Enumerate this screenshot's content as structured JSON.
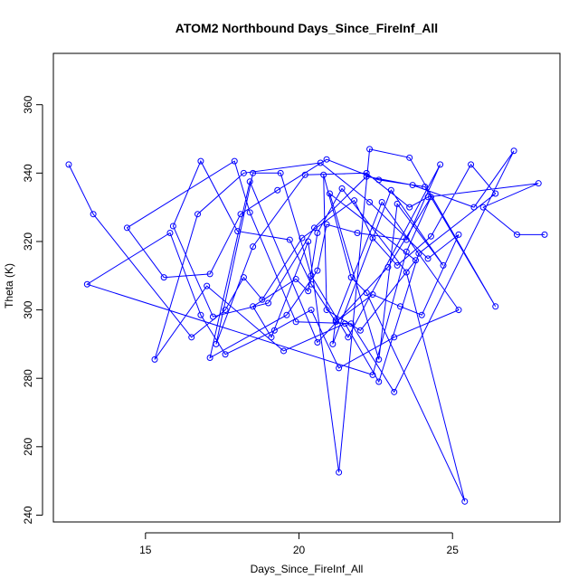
{
  "chart_data": {
    "type": "line",
    "title": "ATOM2 Northbound Days_Since_FireInf_All",
    "xlabel": "Days_Since_FireInf_All",
    "ylabel": "Theta (K)",
    "xlim": [
      12.0,
      28.5
    ],
    "ylim": [
      238.0,
      375.0
    ],
    "xticks": [
      15,
      20,
      25
    ],
    "yticks": [
      240,
      260,
      280,
      300,
      320,
      340,
      360
    ],
    "color": "#0000ff",
    "markers": "open-circle",
    "series": [
      {
        "x": [
          12.5,
          13.3,
          16.5,
          17.6,
          18.2,
          18.8,
          20.1,
          21.8,
          22.4,
          23.2,
          24.3,
          25.6,
          26.4,
          23.9,
          22.6,
          21.5,
          19.5,
          17.0,
          15.3,
          16.7,
          18.2,
          20.7,
          22.3,
          24.2,
          25.2,
          24.0,
          23.3,
          22.4,
          21.2,
          20.4,
          19.7,
          18.0,
          16.8,
          15.9,
          17.2,
          19.0,
          20.5,
          22.2,
          23.7,
          25.7,
          27.0,
          23.1,
          21.7,
          19.9,
          18.4,
          17.9,
          14.4,
          15.6,
          17.1,
          18.1,
          19.3,
          20.9,
          22.6,
          24.1,
          26.4,
          23.6,
          22.3,
          21.3,
          20.3,
          19.1,
          18.5,
          19.9,
          20.3,
          20.6,
          21.4,
          23.5,
          25.4,
          22.2,
          21.7,
          20.8,
          20.9,
          22.0,
          23.8,
          21.0,
          22.6,
          23.2,
          24.7,
          23.0,
          21.1,
          21.2,
          22.7,
          25.2,
          23.1,
          21.3,
          20.4,
          19.2,
          17.6,
          16.8,
          15.8,
          13.1,
          22.4,
          23.5,
          24.3,
          22.9,
          20.6,
          18.4,
          17.1,
          19.6,
          20.6,
          20.9,
          21.9,
          23.5,
          24.6,
          21.6,
          20.4,
          19.4,
          18.5,
          17.3,
          18.5,
          20.2,
          22.2,
          23.6,
          24.2,
          27.8,
          26.0,
          27.1,
          28.0
        ],
        "y": [
          342.5,
          328.0,
          292.0,
          300.0,
          309.5,
          303.0,
          321.0,
          332.0,
          321.0,
          313.0,
          321.5,
          342.5,
          334.0,
          316.5,
          279.0,
          296.0,
          288.0,
          307.0,
          285.5,
          328.0,
          340.0,
          343.0,
          331.5,
          315.0,
          322.0,
          298.5,
          301.0,
          304.5,
          296.5,
          307.5,
          320.5,
          323.0,
          343.5,
          324.5,
          298.0,
          302.0,
          324.0,
          339.0,
          336.5,
          330.0,
          346.5,
          276.0,
          296.0,
          296.5,
          328.5,
          343.5,
          324.0,
          309.5,
          310.5,
          328.0,
          335.0,
          344.0,
          338.0,
          336.0,
          301.0,
          344.5,
          347.0,
          252.5,
          320.0,
          292.0,
          301.0,
          309.0,
          305.5,
          322.5,
          335.5,
          311.0,
          244.0,
          305.0,
          309.5,
          339.5,
          300.0,
          294.0,
          314.5,
          334.0,
          285.5,
          331.0,
          313.0,
          335.0,
          290.0,
          297.0,
          331.5,
          300.0,
          292.0,
          283.0,
          300.0,
          294.0,
          287.0,
          298.5,
          322.5,
          307.5,
          281.0,
          317.0,
          333.0,
          312.5,
          290.5,
          337.5,
          286.0,
          298.5,
          311.5,
          325.0,
          322.5,
          320.5,
          342.5,
          292.0,
          310.0,
          340.0,
          340.0,
          290.0,
          318.5,
          339.5,
          340.0,
          330.0,
          333.0,
          337.0,
          330.0,
          322.0,
          322.0
        ]
      }
    ]
  }
}
